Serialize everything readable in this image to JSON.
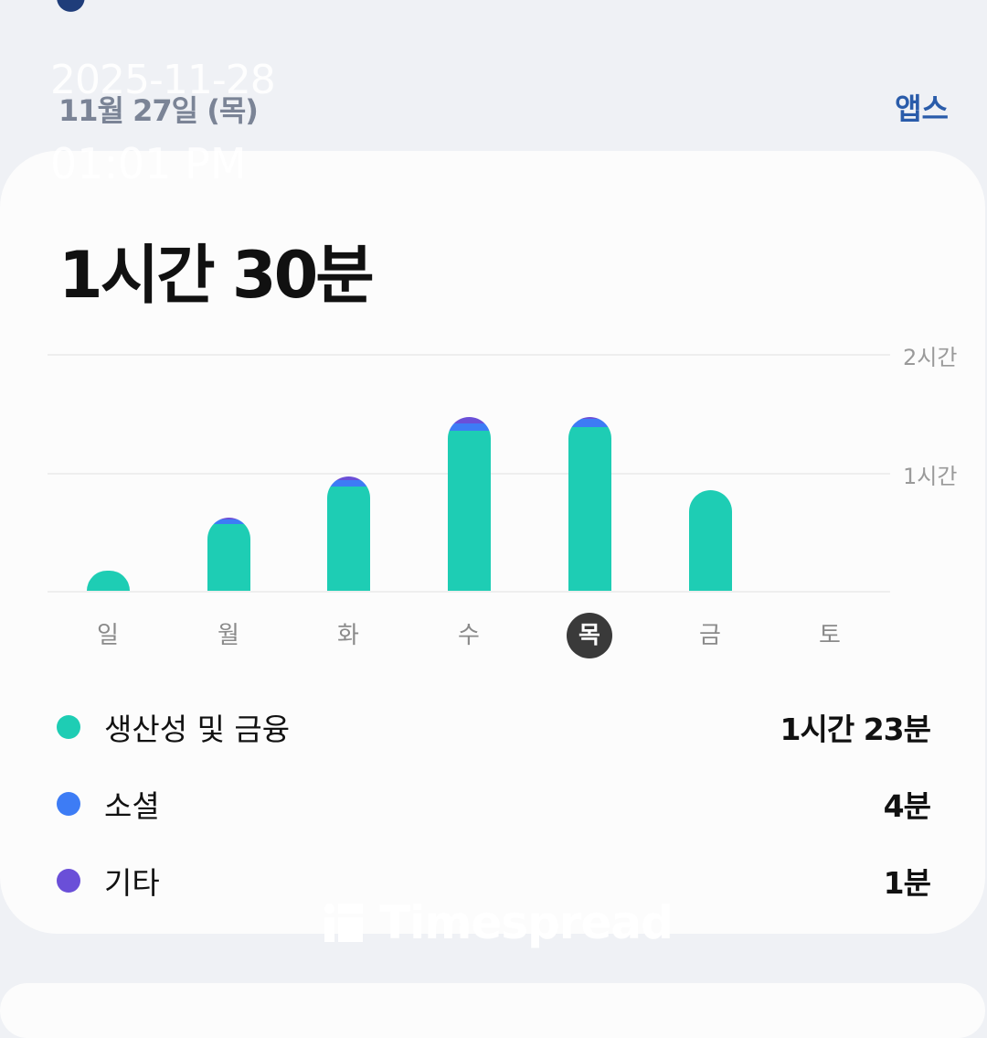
{
  "header": {
    "date": "11월 27일 (목)",
    "apps_link": "앱스"
  },
  "watermark": {
    "date": "2025-11-28",
    "time": "01:01 PM",
    "logo": "Timespread"
  },
  "summary": {
    "total": "1시간 30분"
  },
  "colors": {
    "productivity": "#1ecdb4",
    "social": "#3d7cf5",
    "other": "#6a4fd8",
    "selected_day": "#3a3a3a"
  },
  "chart_data": {
    "type": "bar",
    "stacked": true,
    "categories": [
      "일",
      "월",
      "화",
      "수",
      "목",
      "금",
      "토"
    ],
    "selected_category": "목",
    "y_unit": "minutes",
    "ylim": [
      0,
      120
    ],
    "y_ticks": [
      {
        "value": 60,
        "label": "1시간"
      },
      {
        "value": 120,
        "label": "2시간"
      }
    ],
    "grid": true,
    "series": [
      {
        "name": "생산성 및 금융",
        "color": "#1ecdb4",
        "values": [
          10,
          34,
          53,
          81,
          83,
          51,
          0
        ]
      },
      {
        "name": "소셜",
        "color": "#3d7cf5",
        "values": [
          0,
          2,
          3,
          4,
          4,
          0,
          0
        ]
      },
      {
        "name": "기타",
        "color": "#6a4fd8",
        "values": [
          0,
          1,
          2,
          3,
          1,
          0,
          0
        ]
      }
    ]
  },
  "legend": [
    {
      "name": "생산성 및 금융",
      "value": "1시간 23분",
      "color": "#1ecdb4"
    },
    {
      "name": "소셜",
      "value": "4분",
      "color": "#3d7cf5"
    },
    {
      "name": "기타",
      "value": "1분",
      "color": "#6a4fd8"
    }
  ]
}
